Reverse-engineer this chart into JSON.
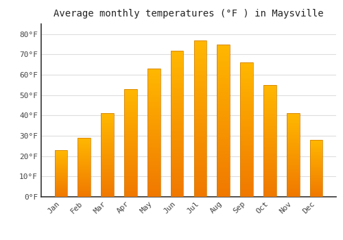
{
  "title": "Average monthly temperatures (°F ) in Maysville",
  "months": [
    "Jan",
    "Feb",
    "Mar",
    "Apr",
    "May",
    "Jun",
    "Jul",
    "Aug",
    "Sep",
    "Oct",
    "Nov",
    "Dec"
  ],
  "values": [
    23,
    29,
    41,
    53,
    63,
    72,
    77,
    75,
    66,
    55,
    41,
    28
  ],
  "bar_color_light": "#FFB400",
  "bar_color_dark": "#F07800",
  "background_color": "#FFFFFF",
  "grid_color": "#DDDDDD",
  "ylim": [
    0,
    85
  ],
  "yticks": [
    0,
    10,
    20,
    30,
    40,
    50,
    60,
    70,
    80
  ],
  "title_fontsize": 10,
  "tick_fontsize": 8,
  "bar_width": 0.55
}
